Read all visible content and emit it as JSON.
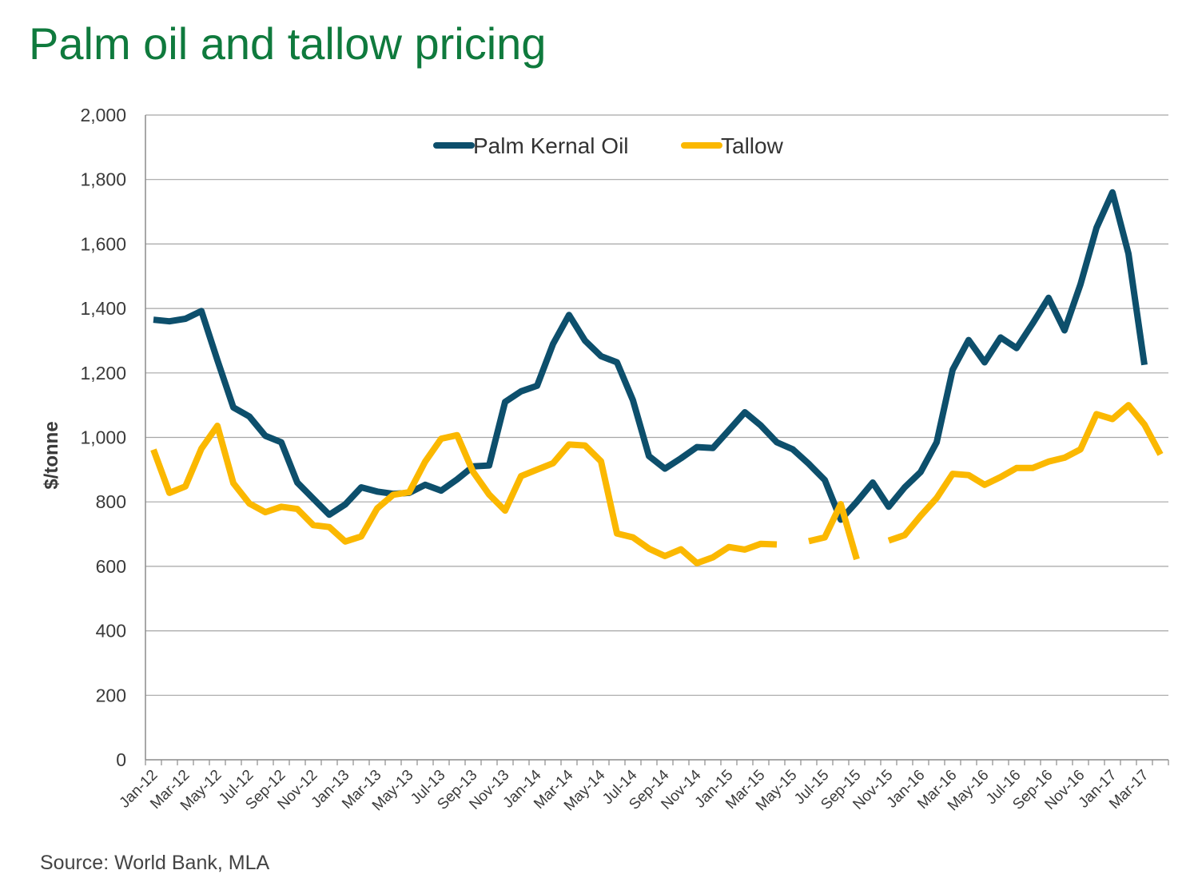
{
  "title": "Palm oil and tallow pricing",
  "source": "Source: World Bank, MLA",
  "colors": {
    "title": "#0f7a3d",
    "palm": "#0d4f6c",
    "tallow": "#fbb800",
    "grid": "#a6a6a6"
  },
  "chart_data": {
    "type": "line",
    "title": "Palm oil and tallow pricing",
    "xlabel": "",
    "ylabel": "$/tonne",
    "ylim": [
      0,
      2000
    ],
    "yticks": [
      0,
      200,
      400,
      600,
      800,
      1000,
      1200,
      1400,
      1600,
      1800,
      2000
    ],
    "ytick_labels": [
      "0",
      "200",
      "400",
      "600",
      "800",
      "1,000",
      "1,200",
      "1,400",
      "1,600",
      "1,800",
      "2,000"
    ],
    "legend_position": "top-center",
    "grid": true,
    "x": [
      "Jan-12",
      "Feb-12",
      "Mar-12",
      "Apr-12",
      "May-12",
      "Jun-12",
      "Jul-12",
      "Aug-12",
      "Sep-12",
      "Oct-12",
      "Nov-12",
      "Dec-12",
      "Jan-13",
      "Feb-13",
      "Mar-13",
      "Apr-13",
      "May-13",
      "Jun-13",
      "Jul-13",
      "Aug-13",
      "Sep-13",
      "Oct-13",
      "Nov-13",
      "Dec-13",
      "Jan-14",
      "Feb-14",
      "Mar-14",
      "Apr-14",
      "May-14",
      "Jun-14",
      "Jul-14",
      "Aug-14",
      "Sep-14",
      "Oct-14",
      "Nov-14",
      "Dec-14",
      "Jan-15",
      "Feb-15",
      "Mar-15",
      "Apr-15",
      "May-15",
      "Jun-15",
      "Jul-15",
      "Aug-15",
      "Sep-15",
      "Oct-15",
      "Nov-15",
      "Dec-15",
      "Jan-16",
      "Feb-16",
      "Mar-16",
      "Apr-16",
      "May-16",
      "Jun-16",
      "Jul-16",
      "Aug-16",
      "Sep-16",
      "Oct-16",
      "Nov-16",
      "Dec-16",
      "Jan-17",
      "Feb-17",
      "Mar-17",
      "Apr-17"
    ],
    "x_tick_labels": [
      "Jan-12",
      "Mar-12",
      "May-12",
      "Jul-12",
      "Sep-12",
      "Nov-12",
      "Jan-13",
      "Mar-13",
      "May-13",
      "Jul-13",
      "Sep-13",
      "Nov-13",
      "Jan-14",
      "Mar-14",
      "May-14",
      "Jul-14",
      "Sep-14",
      "Nov-14",
      "Jan-15",
      "Mar-15",
      "May-15",
      "Jul-15",
      "Sep-15",
      "Nov-15",
      "Jan-16",
      "Mar-16",
      "May-16",
      "Jul-16",
      "Sep-16",
      "Nov-16",
      "Jan-17",
      "Mar-17"
    ],
    "series": [
      {
        "name": "Palm Kernal Oil",
        "values": [
          1365,
          1360,
          1368,
          1392,
          1240,
          1093,
          1065,
          1005,
          985,
          860,
          810,
          760,
          792,
          845,
          832,
          825,
          828,
          853,
          835,
          870,
          910,
          913,
          1110,
          1143,
          1160,
          1290,
          1380,
          1300,
          1252,
          1233,
          1115,
          942,
          903,
          935,
          970,
          967,
          1022,
          1078,
          1037,
          985,
          963,
          918,
          868,
          745,
          800,
          860,
          785,
          845,
          893,
          985,
          1210,
          1302,
          1233,
          1310,
          1277,
          1353,
          1433,
          1332,
          1475,
          1650,
          1760,
          1570,
          1225,
          null
        ],
        "color": "#0d4f6c"
      },
      {
        "name": "Tallow",
        "values": [
          962,
          828,
          848,
          965,
          1036,
          858,
          795,
          768,
          785,
          778,
          728,
          722,
          677,
          693,
          780,
          822,
          830,
          925,
          996,
          1007,
          893,
          823,
          773,
          880,
          900,
          920,
          978,
          975,
          926,
          702,
          690,
          655,
          632,
          653,
          610,
          628,
          660,
          652,
          670,
          668,
          null,
          678,
          690,
          793,
          622,
          null,
          680,
          697,
          757,
          812,
          887,
          883,
          853,
          877,
          905,
          905,
          925,
          937,
          963,
          1072,
          1057,
          1100,
          1040,
          947
        ],
        "color": "#fbb800"
      }
    ]
  }
}
